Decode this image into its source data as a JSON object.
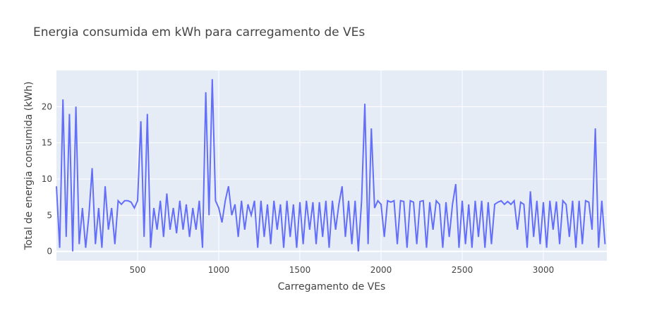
{
  "chart_data": {
    "type": "line",
    "title": "Energia consumida em kWh para carregamento de VEs",
    "xlabel": "Carregamento de VEs",
    "ylabel": "Total de energia consumida (kWh)",
    "xlim": [
      0,
      3391
    ],
    "ylim": [
      -1.3,
      25
    ],
    "xticks": [
      500,
      1000,
      1500,
      2000,
      2500,
      3000
    ],
    "yticks": [
      0,
      5,
      10,
      15,
      20
    ],
    "grid": true,
    "series": [
      {
        "color": "#636efa",
        "x": [
          0,
          20,
          40,
          60,
          80,
          100,
          120,
          140,
          160,
          180,
          200,
          220,
          240,
          260,
          280,
          300,
          320,
          340,
          360,
          380,
          400,
          420,
          440,
          460,
          480,
          500,
          520,
          540,
          560,
          580,
          600,
          620,
          640,
          660,
          680,
          700,
          720,
          740,
          760,
          780,
          800,
          820,
          840,
          860,
          880,
          900,
          920,
          940,
          960,
          980,
          1000,
          1020,
          1040,
          1060,
          1080,
          1100,
          1120,
          1140,
          1160,
          1180,
          1200,
          1220,
          1240,
          1260,
          1280,
          1300,
          1320,
          1340,
          1360,
          1380,
          1400,
          1420,
          1440,
          1460,
          1480,
          1500,
          1520,
          1540,
          1560,
          1580,
          1600,
          1620,
          1640,
          1660,
          1680,
          1700,
          1720,
          1740,
          1760,
          1780,
          1800,
          1820,
          1840,
          1860,
          1880,
          1900,
          1920,
          1940,
          1960,
          1980,
          2000,
          2020,
          2040,
          2060,
          2080,
          2100,
          2120,
          2140,
          2160,
          2180,
          2200,
          2220,
          2240,
          2260,
          2280,
          2300,
          2320,
          2340,
          2360,
          2380,
          2400,
          2420,
          2440,
          2460,
          2480,
          2500,
          2520,
          2540,
          2560,
          2580,
          2600,
          2620,
          2640,
          2660,
          2680,
          2700,
          2720,
          2740,
          2760,
          2780,
          2800,
          2820,
          2840,
          2860,
          2880,
          2900,
          2920,
          2940,
          2960,
          2980,
          3000,
          3020,
          3040,
          3060,
          3080,
          3100,
          3120,
          3140,
          3160,
          3180,
          3200,
          3220,
          3240,
          3260,
          3280,
          3300,
          3320,
          3340,
          3360,
          3380
        ],
        "values": [
          9,
          0.5,
          21,
          2,
          19,
          0,
          20,
          1,
          6,
          0.5,
          5,
          11.5,
          1,
          6,
          0.5,
          9,
          3,
          6,
          1,
          7,
          6.5,
          7,
          7,
          6.8,
          6,
          7,
          18,
          2,
          19,
          0.5,
          6,
          3,
          7,
          2,
          8,
          3,
          6,
          2.5,
          7,
          3,
          6.5,
          2,
          6,
          3,
          7,
          0.5,
          22,
          5,
          23.8,
          7,
          6,
          4,
          7,
          9,
          5,
          6.5,
          2,
          7,
          3,
          6.5,
          5,
          7,
          0.5,
          7,
          2,
          6.5,
          1,
          7,
          3,
          6.5,
          0.5,
          7,
          2,
          6.5,
          0.5,
          6.8,
          1,
          7,
          3,
          6.8,
          1,
          6.8,
          2,
          7,
          0.5,
          7,
          3,
          6.5,
          9,
          2,
          7,
          1,
          7,
          0,
          7,
          20.4,
          1,
          17,
          6,
          7,
          6.5,
          2,
          7,
          6.8,
          7,
          1,
          7,
          6.9,
          0.5,
          7,
          6.8,
          1,
          6.9,
          7,
          0.5,
          6.8,
          3,
          7,
          6.5,
          0.5,
          6.8,
          2,
          6.5,
          9.3,
          0.5,
          7,
          1,
          6.5,
          0.5,
          7,
          2,
          7,
          0.5,
          6.8,
          1,
          6.5,
          6.8,
          7,
          6.5,
          6.9,
          6.5,
          7,
          3,
          6.8,
          6.5,
          0.5,
          8.3,
          2,
          7,
          1,
          6.8,
          0.5,
          7,
          3,
          6.9,
          1,
          7,
          6.5,
          2,
          7,
          0.5,
          7,
          1,
          7,
          6.8,
          3,
          17,
          0.5,
          7,
          1
        ]
      }
    ]
  }
}
